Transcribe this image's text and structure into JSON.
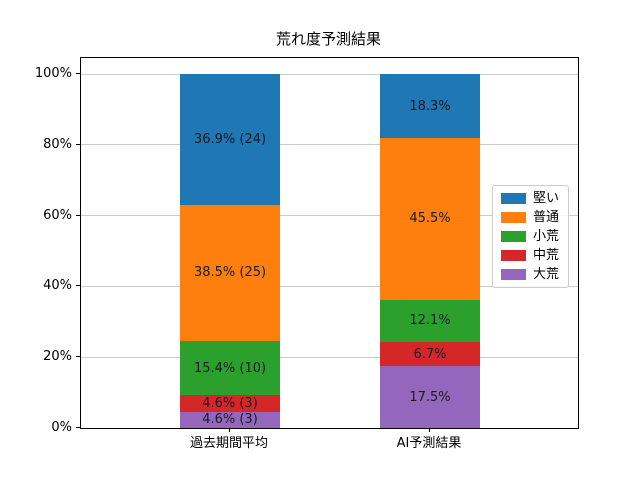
{
  "chart_data": {
    "type": "bar",
    "stacked": true,
    "title": "荒れ度予測結果",
    "xlabel": "",
    "ylabel": "",
    "categories": [
      "過去期間平均",
      "AI予測結果"
    ],
    "series": [
      {
        "name": "堅い",
        "color": "#1f77b4",
        "values": [
          36.9,
          18.3
        ],
        "labels": [
          "36.9% (24)",
          "18.3%"
        ]
      },
      {
        "name": "普通",
        "color": "#ff7f0e",
        "values": [
          38.5,
          45.5
        ],
        "labels": [
          "38.5% (25)",
          "45.5%"
        ]
      },
      {
        "name": "小荒",
        "color": "#2ca02c",
        "values": [
          15.4,
          12.1
        ],
        "labels": [
          "15.4% (10)",
          "12.1%"
        ]
      },
      {
        "name": "中荒",
        "color": "#d62728",
        "values": [
          4.6,
          6.7
        ],
        "labels": [
          "4.6% (3)",
          "6.7%"
        ]
      },
      {
        "name": "大荒",
        "color": "#9467bd",
        "values": [
          4.6,
          17.5
        ],
        "labels": [
          "4.6% (3)",
          "17.5%"
        ]
      }
    ],
    "ylim": [
      0,
      100
    ],
    "yticks": [
      {
        "value": 0,
        "label": "0%"
      },
      {
        "value": 20,
        "label": "20%"
      },
      {
        "value": 40,
        "label": "40%"
      },
      {
        "value": 60,
        "label": "60%"
      },
      {
        "value": 80,
        "label": "80%"
      },
      {
        "value": 100,
        "label": "100%"
      }
    ],
    "grid": true,
    "legend_position": "right"
  }
}
